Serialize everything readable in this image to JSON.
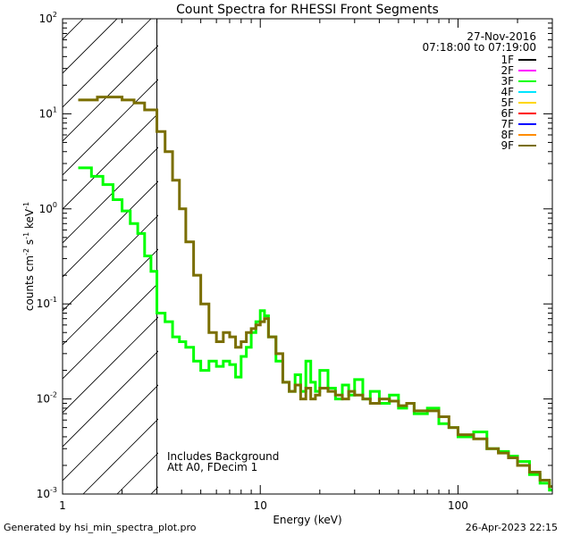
{
  "chart_data": {
    "type": "line",
    "title": "Count Spectra for RHESSI Front Segments",
    "xlabel": "Energy (keV)",
    "ylabel_parts": [
      "counts cm",
      "-2",
      " s",
      "-1",
      " keV",
      "-1"
    ],
    "xscale": "log",
    "yscale": "log",
    "xlim": [
      1,
      300
    ],
    "ylim": [
      0.001,
      100
    ],
    "x_ticks": [
      {
        "value": 1,
        "label": "1"
      },
      {
        "value": 10,
        "label": "10"
      },
      {
        "value": 100,
        "label": "100"
      }
    ],
    "y_ticks": [
      {
        "value": 0.001,
        "base": "10",
        "exp": "-3"
      },
      {
        "value": 0.01,
        "base": "10",
        "exp": "-2"
      },
      {
        "value": 0.1,
        "base": "10",
        "exp": "-1"
      },
      {
        "value": 1,
        "base": "10",
        "exp": "0"
      },
      {
        "value": 10,
        "base": "10",
        "exp": "1"
      },
      {
        "value": 100,
        "base": "10",
        "exp": "2"
      }
    ],
    "excluded_below_keV": 3,
    "legend": {
      "date": "27-Nov-2016",
      "time_range": "07:18:00 to 07:19:00",
      "entries": [
        {
          "name": "1F",
          "color": "#000000"
        },
        {
          "name": "2F",
          "color": "#ff00ff"
        },
        {
          "name": "3F",
          "color": "#00ff00"
        },
        {
          "name": "4F",
          "color": "#00e5ff"
        },
        {
          "name": "5F",
          "color": "#ffd700"
        },
        {
          "name": "6F",
          "color": "#ff0000"
        },
        {
          "name": "7F",
          "color": "#0000ff"
        },
        {
          "name": "8F",
          "color": "#ff8c00"
        },
        {
          "name": "9F",
          "color": "#7a6e00"
        }
      ]
    },
    "annotations": [
      "Includes Background",
      "Att A0, FDecim 1"
    ],
    "series": [
      {
        "name": "3F",
        "color": "#00ff00",
        "points": [
          [
            1.2,
            2.7
          ],
          [
            1.4,
            2.2
          ],
          [
            1.6,
            1.8
          ],
          [
            1.8,
            1.25
          ],
          [
            2.0,
            0.95
          ],
          [
            2.2,
            0.7
          ],
          [
            2.4,
            0.55
          ],
          [
            2.6,
            0.32
          ],
          [
            2.8,
            0.22
          ],
          [
            3.0,
            0.08
          ],
          [
            3.3,
            0.065
          ],
          [
            3.6,
            0.045
          ],
          [
            3.9,
            0.04
          ],
          [
            4.2,
            0.035
          ],
          [
            4.6,
            0.025
          ],
          [
            5.0,
            0.02
          ],
          [
            5.5,
            0.025
          ],
          [
            6.0,
            0.022
          ],
          [
            6.5,
            0.025
          ],
          [
            7.0,
            0.023
          ],
          [
            7.5,
            0.017
          ],
          [
            8.0,
            0.028
          ],
          [
            8.5,
            0.035
          ],
          [
            9.0,
            0.05
          ],
          [
            9.5,
            0.065
          ],
          [
            10.0,
            0.085
          ],
          [
            10.5,
            0.075
          ],
          [
            11.0,
            0.045
          ],
          [
            12.0,
            0.025
          ],
          [
            13.0,
            0.015
          ],
          [
            14.0,
            0.012
          ],
          [
            15.0,
            0.018
          ],
          [
            16.0,
            0.012
          ],
          [
            17.0,
            0.025
          ],
          [
            18.0,
            0.015
          ],
          [
            19.0,
            0.012
          ],
          [
            20.0,
            0.02
          ],
          [
            22.0,
            0.013
          ],
          [
            24.0,
            0.01
          ],
          [
            26.0,
            0.014
          ],
          [
            28.0,
            0.011
          ],
          [
            30.0,
            0.016
          ],
          [
            33.0,
            0.01
          ],
          [
            36.0,
            0.012
          ],
          [
            40.0,
            0.009
          ],
          [
            45.0,
            0.011
          ],
          [
            50.0,
            0.008
          ],
          [
            55.0,
            0.009
          ],
          [
            60.0,
            0.007
          ],
          [
            70.0,
            0.008
          ],
          [
            80.0,
            0.0055
          ],
          [
            90.0,
            0.005
          ],
          [
            100.0,
            0.004
          ],
          [
            120.0,
            0.0045
          ],
          [
            140.0,
            0.003
          ],
          [
            160.0,
            0.0028
          ],
          [
            180.0,
            0.0025
          ],
          [
            200.0,
            0.0022
          ],
          [
            230.0,
            0.0016
          ],
          [
            260.0,
            0.0013
          ],
          [
            290.0,
            0.0011
          ]
        ]
      },
      {
        "name": "9F",
        "color": "#7a6e00",
        "points": [
          [
            1.2,
            14
          ],
          [
            1.5,
            15
          ],
          [
            2.0,
            14
          ],
          [
            2.3,
            13
          ],
          [
            2.6,
            11
          ],
          [
            3.0,
            6.5
          ],
          [
            3.3,
            4.0
          ],
          [
            3.6,
            2.0
          ],
          [
            3.9,
            1.0
          ],
          [
            4.2,
            0.45
          ],
          [
            4.6,
            0.2
          ],
          [
            5.0,
            0.1
          ],
          [
            5.5,
            0.05
          ],
          [
            6.0,
            0.04
          ],
          [
            6.5,
            0.05
          ],
          [
            7.0,
            0.045
          ],
          [
            7.5,
            0.035
          ],
          [
            8.0,
            0.04
          ],
          [
            8.5,
            0.05
          ],
          [
            9.0,
            0.055
          ],
          [
            9.5,
            0.06
          ],
          [
            10.0,
            0.065
          ],
          [
            10.5,
            0.07
          ],
          [
            11.0,
            0.045
          ],
          [
            12.0,
            0.03
          ],
          [
            13.0,
            0.015
          ],
          [
            14.0,
            0.012
          ],
          [
            15.0,
            0.014
          ],
          [
            16.0,
            0.01
          ],
          [
            17.0,
            0.013
          ],
          [
            18.0,
            0.01
          ],
          [
            19.0,
            0.011
          ],
          [
            20.0,
            0.013
          ],
          [
            22.0,
            0.012
          ],
          [
            24.0,
            0.011
          ],
          [
            26.0,
            0.01
          ],
          [
            28.0,
            0.012
          ],
          [
            30.0,
            0.011
          ],
          [
            33.0,
            0.01
          ],
          [
            36.0,
            0.009
          ],
          [
            40.0,
            0.01
          ],
          [
            45.0,
            0.0095
          ],
          [
            50.0,
            0.0085
          ],
          [
            55.0,
            0.009
          ],
          [
            60.0,
            0.0075
          ],
          [
            70.0,
            0.0075
          ],
          [
            80.0,
            0.0065
          ],
          [
            90.0,
            0.005
          ],
          [
            100.0,
            0.0042
          ],
          [
            120.0,
            0.0038
          ],
          [
            140.0,
            0.003
          ],
          [
            160.0,
            0.0027
          ],
          [
            180.0,
            0.0024
          ],
          [
            200.0,
            0.002
          ],
          [
            230.0,
            0.0017
          ],
          [
            260.0,
            0.0014
          ],
          [
            290.0,
            0.0012
          ]
        ]
      }
    ]
  },
  "footer": {
    "generated_by": "Generated by hsi_min_spectra_plot.pro",
    "timestamp": "26-Apr-2023 22:15"
  }
}
